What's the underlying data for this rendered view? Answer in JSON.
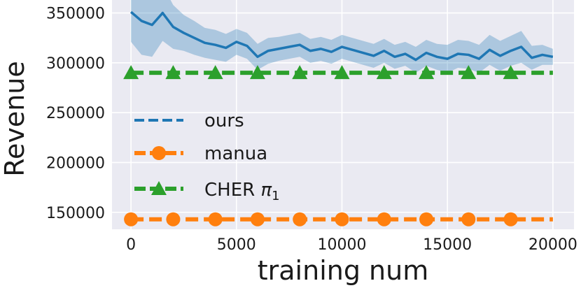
{
  "chart_data": {
    "type": "line",
    "xlabel": "training num",
    "ylabel": "Revenue",
    "xlim": [
      -900,
      21000
    ],
    "ylim": [
      133000,
      363000
    ],
    "x_ticks": [
      0,
      5000,
      10000,
      15000,
      20000
    ],
    "x_tick_labels": [
      "0",
      "5000",
      "10000",
      "15000",
      "20000"
    ],
    "y_ticks": [
      150000,
      200000,
      250000,
      300000,
      350000
    ],
    "y_tick_labels": [
      "150000",
      "200000",
      "250000",
      "300000",
      "350000"
    ],
    "grid": true,
    "legend_position": "lower-left",
    "series": [
      {
        "name": "ours",
        "color": "#1f77b4",
        "style": "solid line with shaded band",
        "x": [
          0,
          500,
          1000,
          1500,
          2000,
          2500,
          3000,
          3500,
          4000,
          4500,
          5000,
          5500,
          6000,
          6500,
          7000,
          7500,
          8000,
          8500,
          9000,
          9500,
          10000,
          10500,
          11000,
          11500,
          12000,
          12500,
          13000,
          13500,
          14000,
          14500,
          15000,
          15500,
          16000,
          16500,
          17000,
          17500,
          18000,
          18500,
          19000,
          19500,
          20000
        ],
        "y": [
          351000,
          342000,
          338000,
          350000,
          336000,
          330000,
          325000,
          320000,
          318000,
          315000,
          321000,
          317000,
          306000,
          312000,
          314000,
          316000,
          318000,
          312000,
          314000,
          311000,
          316000,
          313000,
          310000,
          307000,
          312000,
          306000,
          309000,
          303000,
          310000,
          306000,
          304000,
          309000,
          308000,
          304000,
          313000,
          307000,
          312000,
          316000,
          305000,
          308000,
          306000
        ],
        "band": [
          30000,
          34000,
          32000,
          28000,
          22000,
          18000,
          17000,
          15000,
          15000,
          14000,
          13000,
          13000,
          13000,
          13000,
          12000,
          12000,
          12000,
          12000,
          12000,
          12000,
          12000,
          12000,
          12000,
          12000,
          12000,
          12000,
          12000,
          13000,
          13000,
          13000,
          14000,
          14000,
          14000,
          14000,
          15000,
          15000,
          15000,
          16000,
          12000,
          10000,
          8000
        ]
      },
      {
        "name": "manua",
        "color": "#ff7f0e",
        "style": "dashed with circle markers",
        "x": [
          0,
          20000
        ],
        "y": [
          143000,
          143000
        ],
        "marker_x": [
          0,
          2000,
          4000,
          6000,
          8000,
          10000,
          12000,
          14000,
          16000,
          18000
        ]
      },
      {
        "name": "CHER π1",
        "color": "#2ca02c",
        "style": "dashed with triangle markers",
        "x": [
          0,
          20000
        ],
        "y": [
          290000,
          290000
        ],
        "marker_x": [
          0,
          2000,
          4000,
          6000,
          8000,
          10000,
          12000,
          14000,
          16000,
          18000
        ]
      }
    ],
    "legend": [
      {
        "label": "ours",
        "color": "#1f77b4"
      },
      {
        "label": "manua",
        "color": "#ff7f0e"
      },
      {
        "label": "CHER π1",
        "label_main": "CHER ",
        "label_symbol": "π",
        "label_sub": "1",
        "color": "#2ca02c"
      }
    ]
  }
}
